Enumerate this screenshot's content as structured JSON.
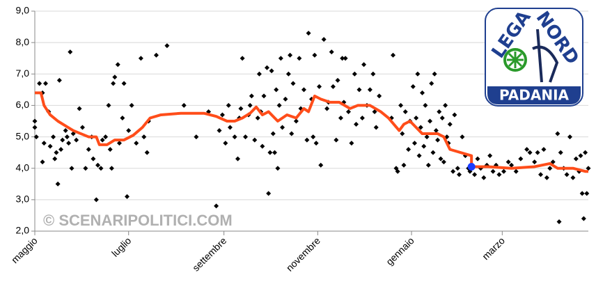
{
  "chart_data": {
    "type": "scatter",
    "xlim": [
      0,
      360
    ],
    "xticks": [
      {
        "value": 0,
        "label": "maggio"
      },
      {
        "value": 61,
        "label": "luglio"
      },
      {
        "value": 123,
        "label": "settembre"
      },
      {
        "value": 184,
        "label": "novembre"
      },
      {
        "value": 245,
        "label": "gennaio"
      },
      {
        "value": 304,
        "label": "marzo"
      }
    ],
    "ylim": [
      2,
      9
    ],
    "yticks": [
      {
        "value": 2,
        "label": "2,0"
      },
      {
        "value": 3,
        "label": "3,0"
      },
      {
        "value": 4,
        "label": "4,0"
      },
      {
        "value": 5,
        "label": "5,0"
      },
      {
        "value": 6,
        "label": "6,0"
      },
      {
        "value": 7,
        "label": "7,0"
      },
      {
        "value": 8,
        "label": "8,0"
      },
      {
        "value": 9,
        "label": "9,0"
      }
    ],
    "grid": true,
    "watermark": "© SCENARIPOLITICI.COM",
    "logo": [
      "LEGA",
      "NORD",
      "PADANIA"
    ],
    "series": [
      {
        "type": "scatter",
        "color": "#000000",
        "x": [
          0,
          0,
          1,
          3,
          5,
          5,
          6,
          7,
          9,
          10,
          12,
          13,
          14,
          15,
          16,
          17,
          18,
          20,
          21,
          22,
          23,
          24,
          25,
          27,
          29,
          31,
          33,
          35,
          37,
          38,
          40,
          41,
          43,
          44,
          46,
          48,
          49,
          50,
          51,
          52,
          54,
          55,
          57,
          58,
          60,
          61,
          63,
          66,
          69,
          71,
          73,
          74,
          79,
          86,
          97,
          105,
          113,
          118,
          120,
          122,
          124,
          126,
          127,
          130,
          132,
          133,
          134,
          135,
          137,
          139,
          140,
          141,
          143,
          145,
          146,
          147,
          148,
          149,
          151,
          152,
          153,
          154,
          155,
          156,
          157,
          158,
          159,
          160,
          161,
          163,
          165,
          166,
          167,
          168,
          170,
          172,
          173,
          175,
          177,
          178,
          180,
          181,
          182,
          183,
          185,
          186,
          188,
          190,
          191,
          193,
          194,
          196,
          197,
          199,
          200,
          201,
          202,
          204,
          206,
          208,
          209,
          211,
          213,
          214,
          216,
          218,
          220,
          221,
          222,
          224,
          232,
          233,
          235,
          236,
          238,
          239,
          240,
          241,
          243,
          244,
          246,
          247,
          248,
          249,
          250,
          251,
          252,
          253,
          254,
          255,
          256,
          257,
          258,
          259,
          260,
          261,
          262,
          263,
          264,
          265,
          266,
          267,
          268,
          269,
          270,
          272,
          273,
          275,
          276,
          278,
          280,
          282,
          283,
          284,
          286,
          288,
          290,
          292,
          294,
          296,
          298,
          300,
          302,
          305,
          308,
          310,
          313,
          316,
          320,
          322,
          325,
          327,
          329,
          331,
          333,
          335,
          337,
          340,
          341,
          342,
          344,
          346,
          348,
          350,
          352,
          354,
          355,
          356,
          357,
          358,
          359,
          360
        ],
        "values": [
          5.5,
          5.3,
          5.0,
          6.7,
          4.2,
          6.4,
          4.8,
          6.7,
          5.8,
          4.7,
          5.0,
          4.3,
          4.5,
          3.5,
          6.8,
          4.6,
          4.9,
          5.2,
          5.0,
          4.8,
          7.7,
          4.0,
          5.1,
          4.9,
          5.9,
          5.3,
          4.0,
          4.6,
          5.0,
          4.3,
          3.0,
          4.1,
          4.0,
          4.9,
          5.0,
          6.0,
          4.6,
          4.0,
          6.7,
          6.9,
          7.3,
          4.8,
          5.6,
          6.7,
          3.1,
          5.2,
          6.0,
          4.8,
          7.5,
          5.0,
          4.5,
          5.5,
          7.6,
          7.9,
          6.0,
          5.0,
          5.8,
          2.8,
          5.2,
          5.7,
          4.8,
          6.0,
          5.3,
          5.0,
          4.3,
          5.6,
          5.9,
          7.5,
          5.0,
          5.7,
          6.0,
          6.3,
          4.9,
          5.6,
          7.0,
          5.8,
          4.7,
          6.3,
          7.2,
          3.2,
          4.5,
          7.1,
          5.1,
          4.5,
          6.5,
          4.0,
          6.0,
          7.5,
          5.3,
          6.2,
          7.0,
          7.6,
          5.1,
          6.7,
          5.5,
          7.5,
          5.9,
          6.5,
          4.9,
          8.3,
          6.2,
          5.0,
          7.6,
          4.8,
          6.6,
          4.1,
          8.1,
          5.9,
          6.1,
          7.7,
          6.6,
          4.9,
          6.8,
          5.6,
          7.5,
          6.1,
          7.5,
          5.8,
          4.8,
          7.0,
          5.4,
          6.5,
          5.6,
          7.3,
          6.0,
          6.5,
          7.0,
          5.8,
          5.3,
          6.3,
          5.6,
          7.6,
          4.0,
          3.9,
          6.0,
          5.1,
          4.1,
          5.8,
          4.6,
          5.5,
          6.6,
          4.8,
          5.6,
          7.0,
          4.4,
          5.3,
          6.4,
          4.7,
          6.0,
          5.0,
          4.1,
          5.5,
          6.7,
          4.5,
          7.0,
          5.2,
          4.9,
          5.8,
          4.3,
          5.6,
          4.2,
          6.0,
          5.0,
          4.8,
          5.4,
          3.9,
          5.7,
          4.0,
          3.8,
          5.0,
          4.4,
          4.0,
          3.9,
          4.1,
          3.8,
          4.3,
          4.0,
          3.7,
          4.1,
          4.4,
          3.9,
          4.1,
          3.8,
          3.9,
          4.2,
          4.1,
          3.9,
          4.3,
          4.6,
          4.5,
          4.2,
          4.5,
          3.8,
          4.6,
          3.7,
          4.0,
          4.2,
          5.1,
          2.3,
          4.5,
          4.0,
          3.8,
          5.0,
          3.7,
          4.3,
          3.9,
          4.4,
          3.2,
          2.4,
          4.5,
          3.2,
          4.0
        ]
      },
      {
        "type": "line",
        "color": "#ff4d1a",
        "x": [
          0,
          4,
          6,
          10,
          15,
          20,
          25,
          30,
          35,
          40,
          42,
          47,
          52,
          58,
          64,
          70,
          75,
          82,
          95,
          110,
          118,
          125,
          130,
          135,
          140,
          144,
          148,
          152,
          158,
          164,
          170,
          175,
          178,
          182,
          186,
          192,
          198,
          205,
          210,
          218,
          225,
          230,
          237,
          240,
          244,
          248,
          252,
          262,
          266,
          270,
          284,
          284,
          295,
          310,
          325,
          335,
          340,
          350,
          358,
          360
        ],
        "values": [
          6.4,
          6.4,
          6.0,
          5.7,
          5.5,
          5.35,
          5.2,
          5.1,
          5.0,
          5.0,
          4.75,
          4.75,
          4.9,
          4.9,
          5.05,
          5.3,
          5.6,
          5.7,
          5.75,
          5.75,
          5.65,
          5.5,
          5.5,
          5.6,
          5.75,
          5.95,
          5.7,
          5.8,
          5.5,
          5.7,
          5.6,
          5.9,
          5.8,
          6.3,
          6.2,
          6.1,
          6.1,
          5.9,
          6.0,
          6.0,
          5.8,
          5.6,
          5.2,
          5.4,
          5.5,
          5.3,
          5.1,
          5.1,
          5.0,
          4.6,
          4.4,
          4.05,
          4.05,
          4.0,
          4.05,
          4.15,
          4.0,
          4.0,
          3.9,
          3.9
        ]
      },
      {
        "type": "point",
        "color": "#1a3cff",
        "x": [
          284
        ],
        "values": [
          4.05
        ]
      }
    ]
  }
}
